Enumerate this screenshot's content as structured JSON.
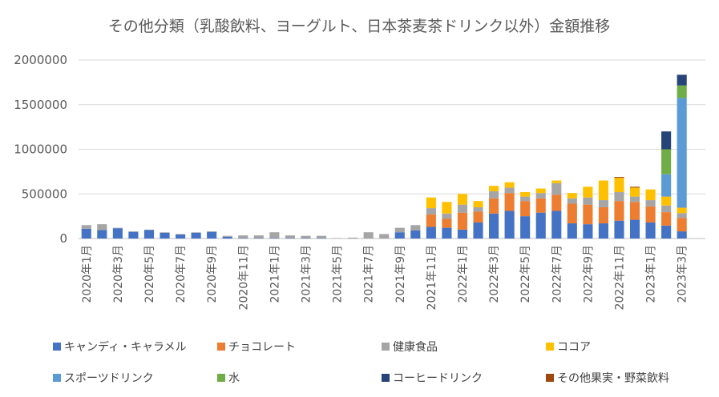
{
  "chart_data": {
    "type": "bar",
    "stacked": true,
    "title": "その他分類（乳酸飲料、ヨーグルト、日本茶麦茶ドリンク以外）金額推移",
    "ylim": [
      0,
      2000000
    ],
    "yticks": [
      "0",
      "500000",
      "1000000",
      "1500000",
      "2000000"
    ],
    "grid": true,
    "legend_position": "bottom",
    "categories": [
      "2020年1月",
      "2020年2月",
      "2020年3月",
      "2020年4月",
      "2020年5月",
      "2020年6月",
      "2020年7月",
      "2020年8月",
      "2020年9月",
      "2020年10月",
      "2020年11月",
      "2020年12月",
      "2021年1月",
      "2021年2月",
      "2021年3月",
      "2021年4月",
      "2021年5月",
      "2021年6月",
      "2021年7月",
      "2021年8月",
      "2021年9月",
      "2021年10月",
      "2021年11月",
      "2021年12月",
      "2022年1月",
      "2022年2月",
      "2022年3月",
      "2022年4月",
      "2022年5月",
      "2022年6月",
      "2022年7月",
      "2022年8月",
      "2022年9月",
      "2022年10月",
      "2022年11月",
      "2022年12月",
      "2023年1月",
      "2023年2月",
      "2023年3月",
      "2023年4月"
    ],
    "tick_labels": [
      "2020年1月",
      "",
      "2020年3月",
      "",
      "2020年5月",
      "",
      "2020年7月",
      "",
      "2020年9月",
      "",
      "2020年11月",
      "",
      "2021年1月",
      "",
      "2021年3月",
      "",
      "2021年5月",
      "",
      "2021年7月",
      "",
      "2021年9月",
      "",
      "2021年11月",
      "",
      "2022年1月",
      "",
      "2022年3月",
      "",
      "2022年5月",
      "",
      "2022年7月",
      "",
      "2022年9月",
      "",
      "2022年11月",
      "",
      "2023年1月",
      "",
      "2023年3月",
      ""
    ],
    "series": [
      {
        "name": "キャンディ・キャラメル",
        "color": "#4472C4",
        "values": [
          110000,
          95000,
          115000,
          75000,
          95000,
          65000,
          45000,
          65000,
          75000,
          20000,
          5000,
          5000,
          5000,
          5000,
          5000,
          5000,
          0,
          0,
          0,
          0,
          70000,
          90000,
          130000,
          120000,
          100000,
          180000,
          280000,
          310000,
          250000,
          290000,
          310000,
          170000,
          160000,
          170000,
          200000,
          210000,
          180000,
          145000,
          80000,
          0
        ]
      },
      {
        "name": "チョコレート",
        "color": "#ED7D31",
        "values": [
          0,
          0,
          0,
          0,
          0,
          0,
          0,
          0,
          0,
          0,
          0,
          0,
          0,
          0,
          0,
          0,
          0,
          0,
          0,
          0,
          0,
          0,
          140000,
          100000,
          190000,
          120000,
          170000,
          200000,
          170000,
          160000,
          180000,
          220000,
          220000,
          180000,
          220000,
          200000,
          180000,
          150000,
          150000,
          0
        ]
      },
      {
        "name": "健康食品",
        "color": "#A5A5A5",
        "values": [
          40000,
          65000,
          5000,
          5000,
          5000,
          5000,
          5000,
          5000,
          5000,
          10000,
          30000,
          30000,
          65000,
          30000,
          25000,
          25000,
          5000,
          10000,
          70000,
          50000,
          50000,
          60000,
          70000,
          60000,
          90000,
          50000,
          80000,
          60000,
          50000,
          60000,
          130000,
          60000,
          80000,
          80000,
          100000,
          60000,
          70000,
          75000,
          55000,
          0
        ]
      },
      {
        "name": "ココア",
        "color": "#FFC000",
        "values": [
          0,
          0,
          0,
          0,
          0,
          0,
          0,
          0,
          0,
          0,
          0,
          0,
          0,
          0,
          0,
          0,
          0,
          0,
          0,
          0,
          0,
          0,
          120000,
          130000,
          120000,
          70000,
          60000,
          60000,
          50000,
          50000,
          30000,
          60000,
          120000,
          220000,
          160000,
          100000,
          120000,
          100000,
          60000,
          0
        ]
      },
      {
        "name": "スポーツドリンク",
        "color": "#5B9BD5",
        "values": [
          0,
          0,
          0,
          0,
          0,
          0,
          0,
          0,
          0,
          0,
          0,
          0,
          0,
          0,
          0,
          0,
          0,
          0,
          0,
          0,
          0,
          0,
          0,
          0,
          0,
          0,
          0,
          0,
          0,
          0,
          0,
          0,
          0,
          0,
          0,
          0,
          0,
          250000,
          1230000,
          0
        ]
      },
      {
        "name": "水",
        "color": "#70AD47",
        "values": [
          0,
          0,
          0,
          0,
          0,
          0,
          0,
          0,
          0,
          0,
          0,
          0,
          0,
          0,
          0,
          0,
          0,
          0,
          0,
          0,
          0,
          0,
          0,
          0,
          0,
          0,
          0,
          0,
          0,
          0,
          0,
          0,
          0,
          0,
          0,
          0,
          0,
          280000,
          140000,
          0
        ]
      },
      {
        "name": "コーヒードリンク",
        "color": "#264478",
        "values": [
          0,
          0,
          0,
          0,
          0,
          0,
          0,
          0,
          0,
          0,
          0,
          0,
          0,
          0,
          0,
          0,
          0,
          0,
          0,
          0,
          0,
          0,
          0,
          0,
          0,
          0,
          0,
          0,
          0,
          0,
          0,
          0,
          0,
          0,
          0,
          0,
          0,
          200000,
          120000,
          0
        ]
      },
      {
        "name": "その他果実・野菜飲料",
        "color": "#9E480E",
        "values": [
          0,
          0,
          0,
          0,
          0,
          0,
          0,
          0,
          0,
          0,
          0,
          0,
          0,
          0,
          0,
          0,
          0,
          0,
          0,
          0,
          0,
          0,
          0,
          0,
          0,
          0,
          0,
          0,
          0,
          0,
          0,
          0,
          0,
          0,
          10000,
          10000,
          0,
          0,
          0,
          0
        ]
      }
    ]
  }
}
